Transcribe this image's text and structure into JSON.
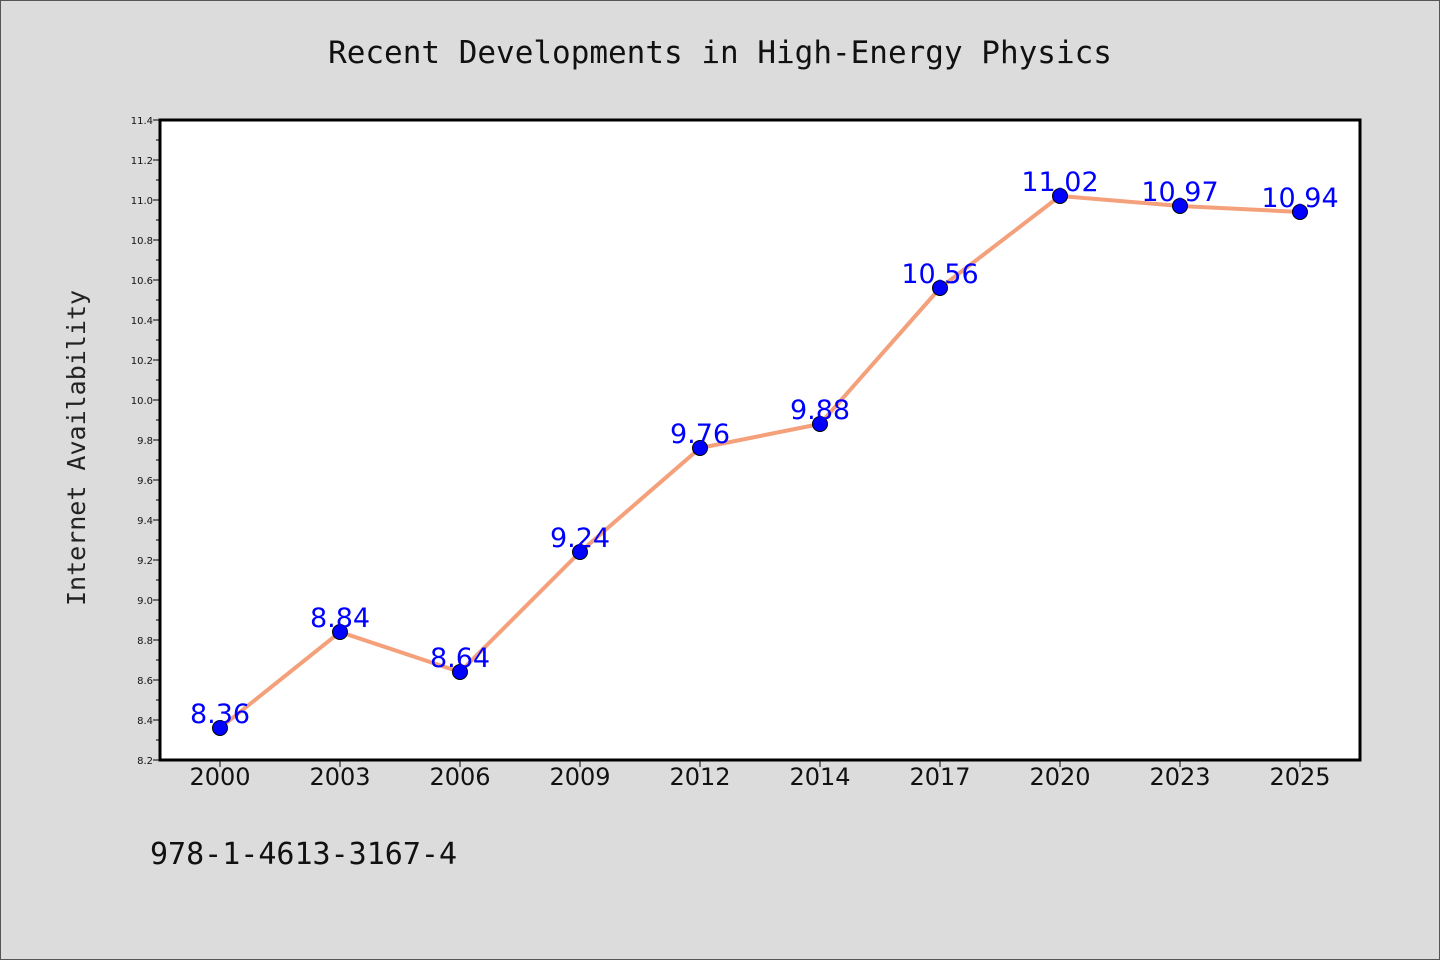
{
  "footer": {
    "code": "978-1-4613-3167-4"
  },
  "chart_data": {
    "type": "line",
    "title": "Recent Developments in High-Energy Physics",
    "xlabel": "",
    "ylabel": "Internet Availability",
    "categories": [
      "2000",
      "2003",
      "2006",
      "2009",
      "2012",
      "2014",
      "2017",
      "2020",
      "2023",
      "2025"
    ],
    "series": [
      {
        "values": [
          8.36,
          8.84,
          8.64,
          9.24,
          9.76,
          9.88,
          10.56,
          11.02,
          10.97,
          10.94
        ],
        "line_color": "#f4a07a",
        "marker_color": "#0000ff"
      }
    ],
    "data_labels": [
      "8.36",
      "8.84",
      "8.64",
      "9.24",
      "9.76",
      "9.88",
      "10.56",
      "11.02",
      "10.97",
      "10.94"
    ],
    "ylim": [
      8.2,
      11.4
    ],
    "y_ticks": [
      "8.2",
      "8.4",
      "8.6",
      "8.8",
      "9.0",
      "9.2",
      "9.4",
      "9.6",
      "9.8",
      "10.0",
      "10.2",
      "10.4",
      "10.6",
      "10.8",
      "11.0",
      "11.2",
      "11.4"
    ],
    "grid": false,
    "legend": "none",
    "colors": {
      "background": "#dcdcdc",
      "plot_background": "#ffffff",
      "axis": "#000000"
    }
  }
}
